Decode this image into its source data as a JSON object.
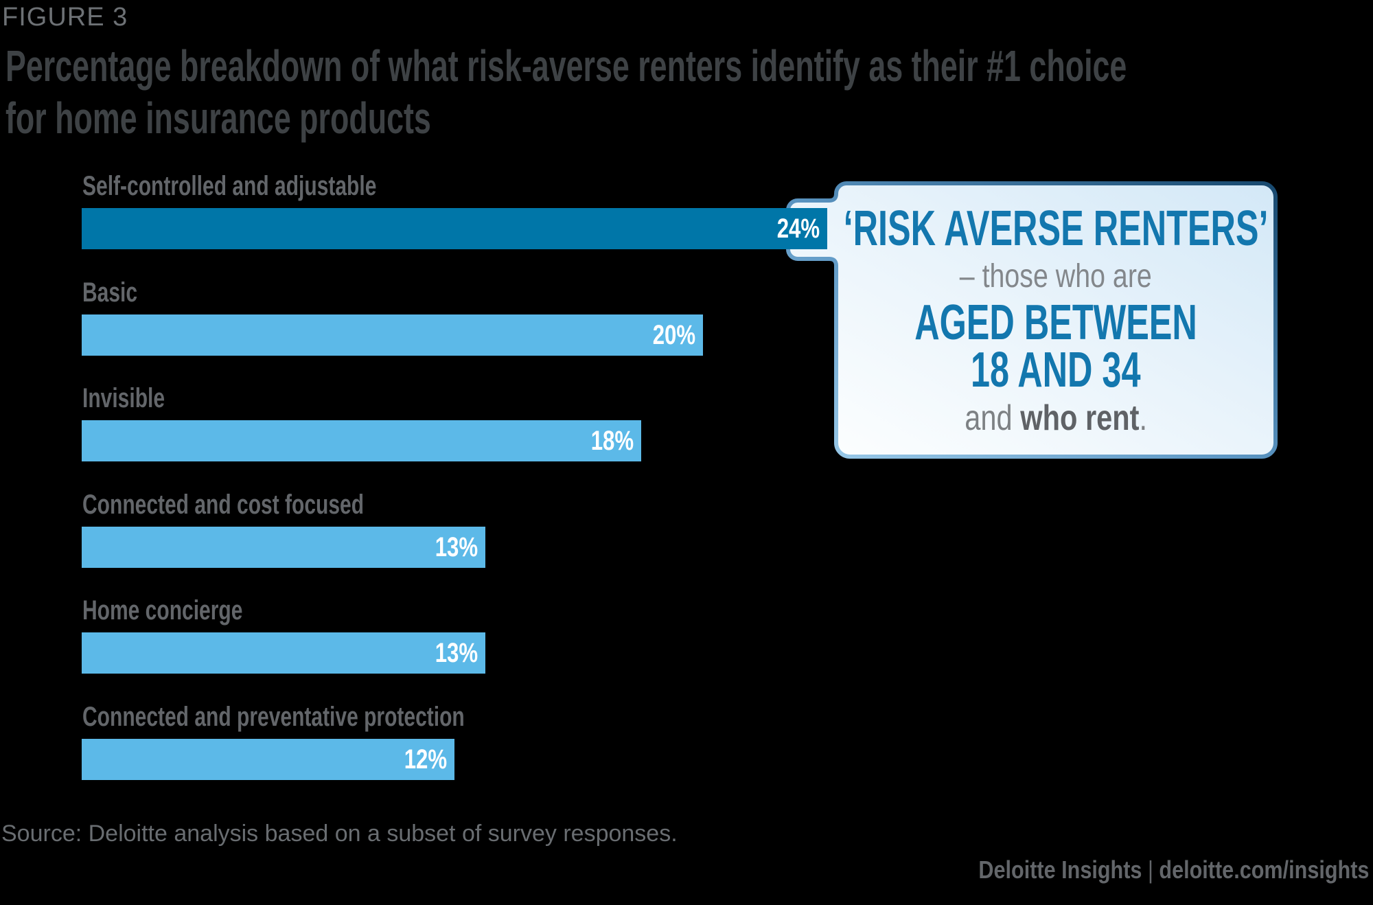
{
  "figure_label": "FIGURE 3",
  "title": {
    "line1": "Percentage breakdown of what risk-averse renters identify as their #1 choice",
    "line2": "for home insurance products"
  },
  "chart_data": {
    "type": "bar",
    "orientation": "horizontal",
    "unit": "%",
    "categories": [
      "Self-controlled and adjustable",
      "Basic",
      "Invisible",
      "Connected and cost focused",
      "Home concierge",
      "Connected and preventative protection"
    ],
    "values": [
      24,
      20,
      18,
      13,
      13,
      12
    ],
    "value_labels": [
      "24%",
      "20%",
      "18%",
      "13%",
      "13%",
      "12%"
    ],
    "value_axis_range": [
      0,
      24
    ],
    "grid": false,
    "legend": false,
    "colors": {
      "first_bar": "#0076A8",
      "other_bars": "#5CB9E8",
      "value_text": "#FFFFFF",
      "category_text": "#63666A"
    }
  },
  "callout": {
    "line1": "‘RISK AVERSE RENTERS’",
    "line2": "– those who are",
    "line3": "AGED BETWEEN",
    "line4": "18 AND 34",
    "line5_prefix": "and ",
    "line5_bold": "who rent",
    "line5_suffix": "."
  },
  "source": "Source: Deloitte analysis based on a subset of survey responses.",
  "footer": {
    "brand": "Deloitte Insights",
    "separator": "|",
    "url": "deloitte.com/insights"
  },
  "colors": {
    "background": "#000000",
    "title_text": "#3E4245",
    "figure_label_text": "#6D7175",
    "callout_blue_text": "#1377AE",
    "callout_gray_text": "#83878B",
    "callout_border_dark": "#17486E",
    "callout_border_light": "#9ECDEB",
    "callout_fill_light": "#FFFFFF",
    "callout_fill_blue": "#D3E8F7",
    "source_text": "#696D71",
    "footer_text": "#63666A"
  }
}
